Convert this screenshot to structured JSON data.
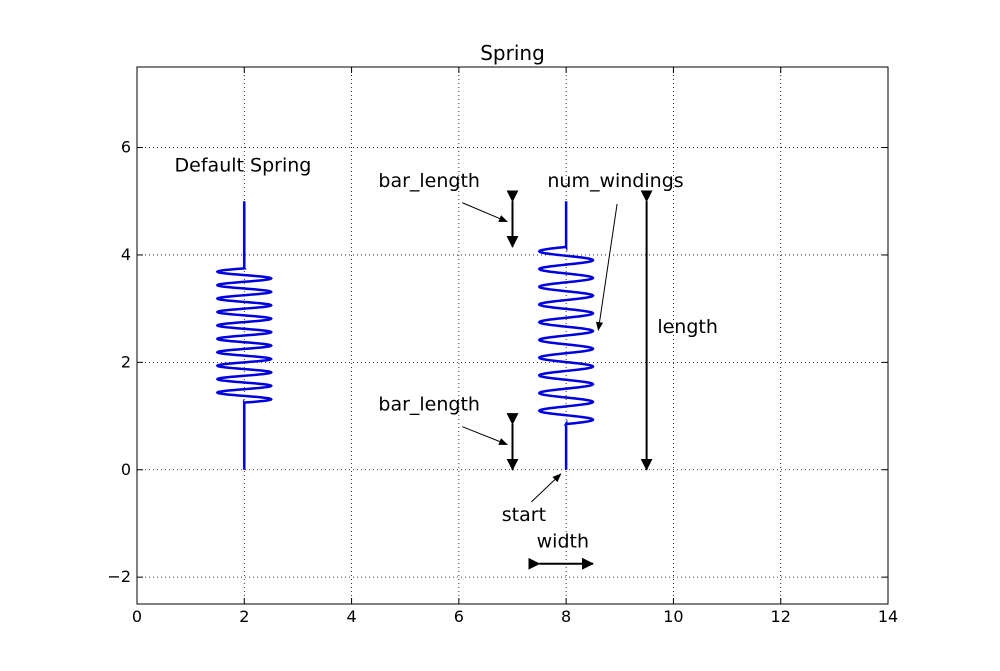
{
  "chart_data": {
    "type": "line",
    "title": "Spring",
    "xlabel": "",
    "ylabel": "",
    "xlim": [
      0,
      14
    ],
    "ylim": [
      -2.5,
      7.5
    ],
    "xticks": [
      0,
      2,
      4,
      6,
      8,
      10,
      12,
      14
    ],
    "yticks": [
      -2,
      0,
      2,
      4,
      6
    ],
    "grid": true,
    "grid_style": "dotted",
    "spring_color": "#0000dd",
    "springs": [
      {
        "start": [
          2,
          0
        ],
        "length": 5,
        "width": 1,
        "bar_length": 1.25,
        "num_windings": 10
      },
      {
        "start": [
          8,
          0
        ],
        "length": 5,
        "width": 1,
        "bar_length": 0.85,
        "num_windings": 10
      }
    ],
    "annotations": [
      {
        "text": "Default Spring",
        "x": 0.7,
        "y": 5.55
      },
      {
        "text": "bar_length",
        "x": 4.5,
        "y": 5.27,
        "arrow_to": [
          6.9,
          4.62
        ]
      },
      {
        "text": "num_windings",
        "x": 7.65,
        "y": 5.27,
        "arrow_from": [
          8.95,
          4.95
        ],
        "arrow_to": [
          8.6,
          2.6
        ]
      },
      {
        "text": "length",
        "x": 9.7,
        "y": 2.55
      },
      {
        "text": "bar_length",
        "x": 4.5,
        "y": 1.1,
        "arrow_to": [
          6.9,
          0.47
        ]
      },
      {
        "text": "start",
        "x": 6.8,
        "y": -0.95,
        "arrow_from": [
          7.35,
          -0.6
        ],
        "arrow_to": [
          7.9,
          -0.08
        ]
      },
      {
        "text": "width",
        "x": 7.45,
        "y": -1.45
      }
    ],
    "dimension_arrows": [
      {
        "from": [
          7,
          5
        ],
        "to": [
          7,
          4.15
        ]
      },
      {
        "from": [
          7,
          0.85
        ],
        "to": [
          7,
          0
        ]
      },
      {
        "from": [
          9.5,
          5
        ],
        "to": [
          9.5,
          0
        ]
      },
      {
        "from": [
          7.5,
          -1.75
        ],
        "to": [
          8.5,
          -1.75
        ]
      }
    ]
  }
}
